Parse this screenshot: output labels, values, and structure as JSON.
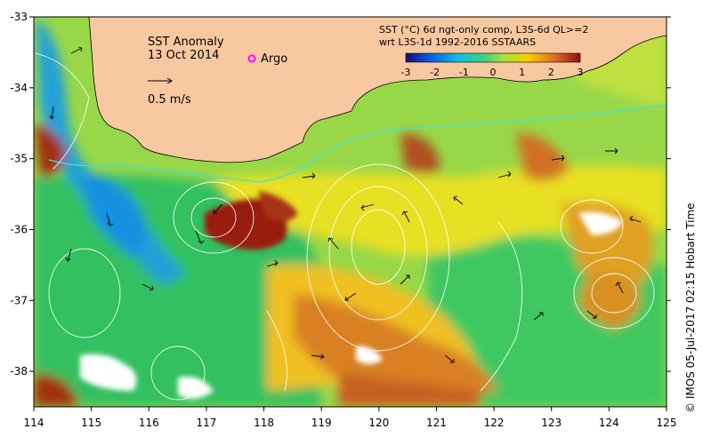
{
  "map": {
    "title": "SST Anomaly",
    "date": "13 Oct 2014",
    "argo_label": "Argo",
    "scale_label": "0.5 m/s",
    "colorbar_title_line1": "SST (°C) 6d ngt-only comp, L3S-6d QL>=2",
    "colorbar_title_line2": "wrt L3S-1d 1992-2016 SSTAARS",
    "colorbar_ticks": [
      "-3",
      "-2",
      "-1",
      "0",
      "1",
      "2",
      "3"
    ],
    "credit": "© IMOS 05-Jul-2017 02:15 Hobart Time",
    "lon_ticks": [
      "114",
      "115",
      "116",
      "117",
      "118",
      "119",
      "120",
      "121",
      "122",
      "123",
      "124",
      "125"
    ],
    "lat_ticks": [
      "-33",
      "-34",
      "-35",
      "-36",
      "-37",
      "-38"
    ],
    "lon_range": [
      114,
      125
    ],
    "lat_range": [
      -38.5,
      -33
    ],
    "colors": {
      "land": "#f8c8a0",
      "cold": "#2080e0",
      "cool": "#20c880",
      "neutral": "#a0e040",
      "warm": "#f8d000",
      "hot": "#e07020",
      "very_hot": "#a02010",
      "argo": "#ff00ff",
      "contour": "#ffffff",
      "shelf_edge": "#40e0e0"
    }
  }
}
